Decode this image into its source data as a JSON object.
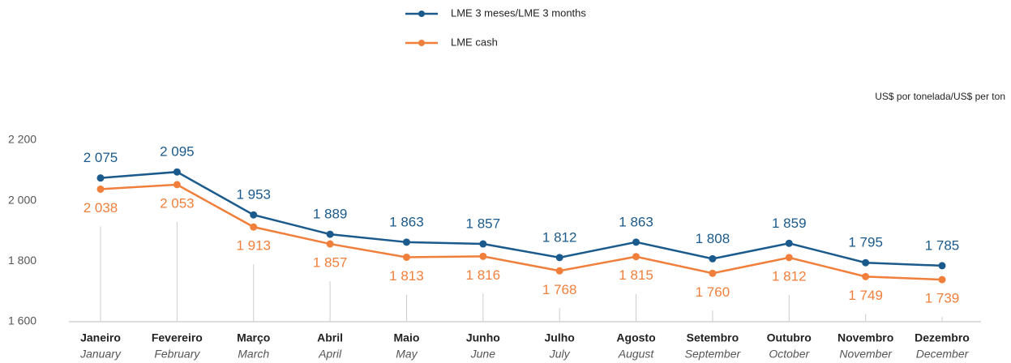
{
  "chart_data": {
    "type": "line",
    "y_unit": "US$ por tonelada/US$ per ton",
    "categories": [
      "Janeiro",
      "Fevereiro",
      "Março",
      "Abril",
      "Maio",
      "Junho",
      "Julho",
      "Agosto",
      "Setembro",
      "Outubro",
      "Novembro",
      "Dezembro"
    ],
    "categories_en": [
      "January",
      "February",
      "March",
      "April",
      "May",
      "June",
      "July",
      "August",
      "September",
      "October",
      "November",
      "December"
    ],
    "series": [
      {
        "name": "LME 3 meses/LME 3 months",
        "color": "#1a5a8c",
        "values": [
          2075,
          2095,
          1953,
          1889,
          1863,
          1857,
          1812,
          1863,
          1808,
          1859,
          1795,
          1785
        ],
        "value_labels": [
          "2 075",
          "2 095",
          "1 953",
          "1 889",
          "1 863",
          "1 857",
          "1 812",
          "1 863",
          "1 808",
          "1 859",
          "1 795",
          "1 785"
        ]
      },
      {
        "name": "LME cash",
        "color": "#f07f3c",
        "values": [
          2038,
          2053,
          1913,
          1857,
          1813,
          1816,
          1768,
          1815,
          1760,
          1812,
          1749,
          1739
        ],
        "value_labels": [
          "2 038",
          "2 053",
          "1 913",
          "1 857",
          "1 813",
          "1 816",
          "1 768",
          "1 815",
          "1 760",
          "1 812",
          "1 749",
          "1 739"
        ]
      }
    ],
    "ylim": [
      1600,
      2200
    ],
    "yticks": [
      {
        "value": 1600,
        "label": "1 600"
      },
      {
        "value": 1800,
        "label": "1 800"
      },
      {
        "value": 2000,
        "label": "2 000"
      },
      {
        "value": 2200,
        "label": "2 200"
      }
    ],
    "legend": "top"
  }
}
